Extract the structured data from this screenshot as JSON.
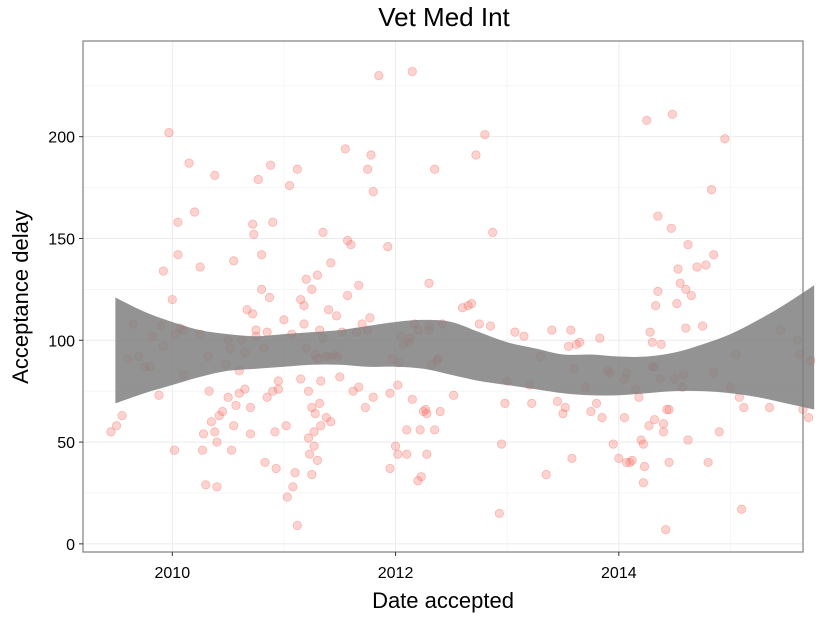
{
  "chart_data": {
    "type": "scatter",
    "title": "Vet Med Int",
    "xlabel": "Date accepted",
    "ylabel": "Acceptance delay",
    "x_unit": "year",
    "xlim": [
      2009.2,
      2015.65
    ],
    "ylim": [
      -4,
      247
    ],
    "x_ticks": [
      2010,
      2012,
      2014
    ],
    "x_tick_labels": [
      "2010",
      "2012",
      "2014"
    ],
    "y_ticks": [
      0,
      50,
      100,
      150,
      200
    ],
    "y_tick_labels": [
      "0",
      "50",
      "100",
      "150",
      "200"
    ],
    "grid": true,
    "point_color": "#f8766d",
    "smooth_color": "#808080",
    "points": [
      [
        2009.45,
        55
      ],
      [
        2009.5,
        58
      ],
      [
        2009.55,
        63
      ],
      [
        2009.6,
        91
      ],
      [
        2009.65,
        108
      ],
      [
        2009.7,
        92
      ],
      [
        2009.75,
        87
      ],
      [
        2009.8,
        87
      ],
      [
        2009.82,
        102
      ],
      [
        2009.88,
        73
      ],
      [
        2009.9,
        107
      ],
      [
        2009.92,
        97
      ],
      [
        2009.92,
        134
      ],
      [
        2009.97,
        202
      ],
      [
        2010.0,
        120
      ],
      [
        2010.02,
        46
      ],
      [
        2010.03,
        103
      ],
      [
        2010.05,
        158
      ],
      [
        2010.05,
        142
      ],
      [
        2010.07,
        106
      ],
      [
        2010.1,
        83
      ],
      [
        2010.1,
        105
      ],
      [
        2010.15,
        187
      ],
      [
        2010.2,
        163
      ],
      [
        2010.25,
        136
      ],
      [
        2010.25,
        103
      ],
      [
        2010.27,
        46
      ],
      [
        2010.28,
        54
      ],
      [
        2010.3,
        29
      ],
      [
        2010.32,
        92
      ],
      [
        2010.33,
        75
      ],
      [
        2010.35,
        60
      ],
      [
        2010.38,
        55
      ],
      [
        2010.38,
        181
      ],
      [
        2010.4,
        50
      ],
      [
        2010.4,
        28
      ],
      [
        2010.42,
        63
      ],
      [
        2010.45,
        65
      ],
      [
        2010.48,
        88
      ],
      [
        2010.5,
        72
      ],
      [
        2010.5,
        100
      ],
      [
        2010.52,
        96
      ],
      [
        2010.53,
        46
      ],
      [
        2010.55,
        58
      ],
      [
        2010.55,
        139
      ],
      [
        2010.57,
        68
      ],
      [
        2010.6,
        85
      ],
      [
        2010.6,
        74
      ],
      [
        2010.62,
        100
      ],
      [
        2010.65,
        94
      ],
      [
        2010.65,
        76
      ],
      [
        2010.67,
        115
      ],
      [
        2010.7,
        67
      ],
      [
        2010.7,
        54
      ],
      [
        2010.72,
        113
      ],
      [
        2010.72,
        157
      ],
      [
        2010.73,
        152
      ],
      [
        2010.75,
        105
      ],
      [
        2010.75,
        102
      ],
      [
        2010.77,
        179
      ],
      [
        2010.8,
        125
      ],
      [
        2010.8,
        142
      ],
      [
        2010.82,
        96
      ],
      [
        2010.83,
        40
      ],
      [
        2010.85,
        72
      ],
      [
        2010.85,
        104
      ],
      [
        2010.87,
        121
      ],
      [
        2010.88,
        186
      ],
      [
        2010.9,
        75
      ],
      [
        2010.9,
        158
      ],
      [
        2010.92,
        55
      ],
      [
        2010.93,
        37
      ],
      [
        2010.95,
        76
      ],
      [
        2010.95,
        80
      ],
      [
        2011.0,
        110
      ],
      [
        2011.02,
        58
      ],
      [
        2011.03,
        23
      ],
      [
        2011.05,
        176
      ],
      [
        2011.07,
        103
      ],
      [
        2011.08,
        28
      ],
      [
        2011.1,
        35
      ],
      [
        2011.12,
        184
      ],
      [
        2011.12,
        9
      ],
      [
        2011.15,
        81
      ],
      [
        2011.15,
        120
      ],
      [
        2011.18,
        108
      ],
      [
        2011.18,
        117
      ],
      [
        2011.2,
        130
      ],
      [
        2011.2,
        96
      ],
      [
        2011.22,
        75
      ],
      [
        2011.22,
        52
      ],
      [
        2011.23,
        44
      ],
      [
        2011.25,
        34
      ],
      [
        2011.25,
        67
      ],
      [
        2011.25,
        125
      ],
      [
        2011.27,
        48
      ],
      [
        2011.27,
        55
      ],
      [
        2011.28,
        64
      ],
      [
        2011.28,
        93
      ],
      [
        2011.3,
        41
      ],
      [
        2011.3,
        132
      ],
      [
        2011.3,
        91
      ],
      [
        2011.32,
        105
      ],
      [
        2011.32,
        69
      ],
      [
        2011.33,
        58
      ],
      [
        2011.33,
        80
      ],
      [
        2011.35,
        153
      ],
      [
        2011.35,
        101
      ],
      [
        2011.37,
        92
      ],
      [
        2011.38,
        62
      ],
      [
        2011.4,
        115
      ],
      [
        2011.4,
        92
      ],
      [
        2011.42,
        60
      ],
      [
        2011.42,
        138
      ],
      [
        2011.45,
        93
      ],
      [
        2011.47,
        112
      ],
      [
        2011.48,
        92
      ],
      [
        2011.5,
        82
      ],
      [
        2011.52,
        104
      ],
      [
        2011.55,
        194
      ],
      [
        2011.57,
        122
      ],
      [
        2011.57,
        149
      ],
      [
        2011.6,
        147
      ],
      [
        2011.62,
        75
      ],
      [
        2011.65,
        104
      ],
      [
        2011.67,
        77
      ],
      [
        2011.67,
        127
      ],
      [
        2011.7,
        108
      ],
      [
        2011.73,
        67
      ],
      [
        2011.75,
        105
      ],
      [
        2011.75,
        184
      ],
      [
        2011.77,
        111
      ],
      [
        2011.78,
        191
      ],
      [
        2011.8,
        72
      ],
      [
        2011.8,
        173
      ],
      [
        2011.85,
        230
      ],
      [
        2011.95,
        37
      ],
      [
        2012.15,
        232
      ],
      [
        2012.2,
        31
      ],
      [
        2012.23,
        33
      ],
      [
        2012.3,
        105
      ],
      [
        2011.93,
        146
      ],
      [
        2011.95,
        74
      ],
      [
        2011.97,
        91
      ],
      [
        2012.0,
        48
      ],
      [
        2012.02,
        78
      ],
      [
        2012.02,
        44
      ],
      [
        2012.03,
        89
      ],
      [
        2012.05,
        102
      ],
      [
        2012.07,
        98
      ],
      [
        2012.1,
        44
      ],
      [
        2012.1,
        56
      ],
      [
        2012.12,
        99
      ],
      [
        2012.13,
        101
      ],
      [
        2012.15,
        71
      ],
      [
        2012.17,
        108
      ],
      [
        2012.2,
        105
      ],
      [
        2012.22,
        56
      ],
      [
        2012.25,
        65
      ],
      [
        2012.27,
        66
      ],
      [
        2012.28,
        44
      ],
      [
        2012.28,
        64
      ],
      [
        2012.3,
        107
      ],
      [
        2012.3,
        128
      ],
      [
        2012.32,
        88
      ],
      [
        2012.35,
        184
      ],
      [
        2012.35,
        56
      ],
      [
        2012.37,
        90
      ],
      [
        2012.38,
        91
      ],
      [
        2012.4,
        65
      ],
      [
        2012.42,
        108
      ],
      [
        2012.52,
        73
      ],
      [
        2012.6,
        116
      ],
      [
        2012.65,
        117
      ],
      [
        2012.68,
        118
      ],
      [
        2012.72,
        191
      ],
      [
        2012.75,
        108
      ],
      [
        2012.8,
        201
      ],
      [
        2012.85,
        107
      ],
      [
        2012.87,
        153
      ],
      [
        2012.93,
        15
      ],
      [
        2012.95,
        49
      ],
      [
        2012.98,
        69
      ],
      [
        2013.0,
        80
      ],
      [
        2013.07,
        104
      ],
      [
        2013.15,
        102
      ],
      [
        2013.2,
        78
      ],
      [
        2013.22,
        69
      ],
      [
        2013.3,
        92
      ],
      [
        2013.35,
        34
      ],
      [
        2013.4,
        105
      ],
      [
        2013.45,
        70
      ],
      [
        2013.5,
        64
      ],
      [
        2013.52,
        67
      ],
      [
        2013.55,
        97
      ],
      [
        2013.57,
        105
      ],
      [
        2013.58,
        42
      ],
      [
        2013.6,
        86
      ],
      [
        2013.62,
        98
      ],
      [
        2013.65,
        99
      ],
      [
        2013.7,
        77
      ],
      [
        2013.75,
        65
      ],
      [
        2013.8,
        69
      ],
      [
        2013.83,
        101
      ],
      [
        2013.85,
        62
      ],
      [
        2013.9,
        85
      ],
      [
        2013.92,
        84
      ],
      [
        2013.95,
        49
      ],
      [
        2014.0,
        42
      ],
      [
        2014.05,
        62
      ],
      [
        2014.05,
        81
      ],
      [
        2014.07,
        84
      ],
      [
        2014.07,
        40
      ],
      [
        2014.1,
        40
      ],
      [
        2014.12,
        41
      ],
      [
        2014.15,
        76
      ],
      [
        2014.18,
        72
      ],
      [
        2014.2,
        51
      ],
      [
        2014.22,
        30
      ],
      [
        2014.22,
        49
      ],
      [
        2014.23,
        38
      ],
      [
        2014.25,
        208
      ],
      [
        2014.27,
        58
      ],
      [
        2014.28,
        104
      ],
      [
        2014.3,
        87
      ],
      [
        2014.3,
        99
      ],
      [
        2014.32,
        61
      ],
      [
        2014.32,
        87
      ],
      [
        2014.33,
        117
      ],
      [
        2014.35,
        161
      ],
      [
        2014.35,
        124
      ],
      [
        2014.37,
        81
      ],
      [
        2014.38,
        98
      ],
      [
        2014.4,
        55
      ],
      [
        2014.4,
        59
      ],
      [
        2014.42,
        7
      ],
      [
        2014.43,
        66
      ],
      [
        2014.45,
        66
      ],
      [
        2014.45,
        40
      ],
      [
        2014.47,
        155
      ],
      [
        2014.48,
        211
      ],
      [
        2014.5,
        81
      ],
      [
        2014.52,
        118
      ],
      [
        2014.53,
        135
      ],
      [
        2014.55,
        128
      ],
      [
        2014.57,
        77
      ],
      [
        2014.58,
        83
      ],
      [
        2014.6,
        106
      ],
      [
        2014.6,
        125
      ],
      [
        2014.62,
        51
      ],
      [
        2014.62,
        147
      ],
      [
        2014.65,
        122
      ],
      [
        2014.7,
        136
      ],
      [
        2014.75,
        107
      ],
      [
        2014.78,
        137
      ],
      [
        2014.8,
        40
      ],
      [
        2014.83,
        174
      ],
      [
        2014.85,
        84
      ],
      [
        2014.85,
        142
      ],
      [
        2014.9,
        55
      ],
      [
        2014.95,
        199
      ],
      [
        2015.0,
        77
      ],
      [
        2015.05,
        93
      ],
      [
        2015.08,
        72
      ],
      [
        2015.1,
        17
      ],
      [
        2015.12,
        67
      ],
      [
        2015.35,
        67
      ],
      [
        2015.45,
        105
      ],
      [
        2015.6,
        100
      ],
      [
        2015.62,
        93
      ],
      [
        2015.65,
        66
      ],
      [
        2015.7,
        62
      ],
      [
        2015.72,
        90
      ]
    ],
    "smooth": {
      "x": [
        2009.49,
        2009.75,
        2010.0,
        2010.25,
        2010.5,
        2010.75,
        2011.0,
        2011.25,
        2011.5,
        2011.75,
        2012.0,
        2012.25,
        2012.5,
        2012.75,
        2013.0,
        2013.25,
        2013.5,
        2013.75,
        2014.0,
        2014.25,
        2014.5,
        2014.75,
        2015.0,
        2015.25,
        2015.5,
        2015.75
      ],
      "lower": [
        69,
        74,
        78,
        82,
        85,
        86,
        87,
        88,
        88,
        87,
        87,
        86,
        83,
        80,
        78,
        76,
        74,
        73,
        73,
        74,
        75,
        75,
        74,
        72,
        69,
        66
      ],
      "upper": [
        121,
        114,
        109,
        105,
        103,
        102,
        103,
        104,
        105,
        107,
        109,
        110,
        109,
        104,
        99,
        96,
        93,
        93,
        92,
        92,
        94,
        98,
        103,
        110,
        118,
        127
      ]
    }
  }
}
